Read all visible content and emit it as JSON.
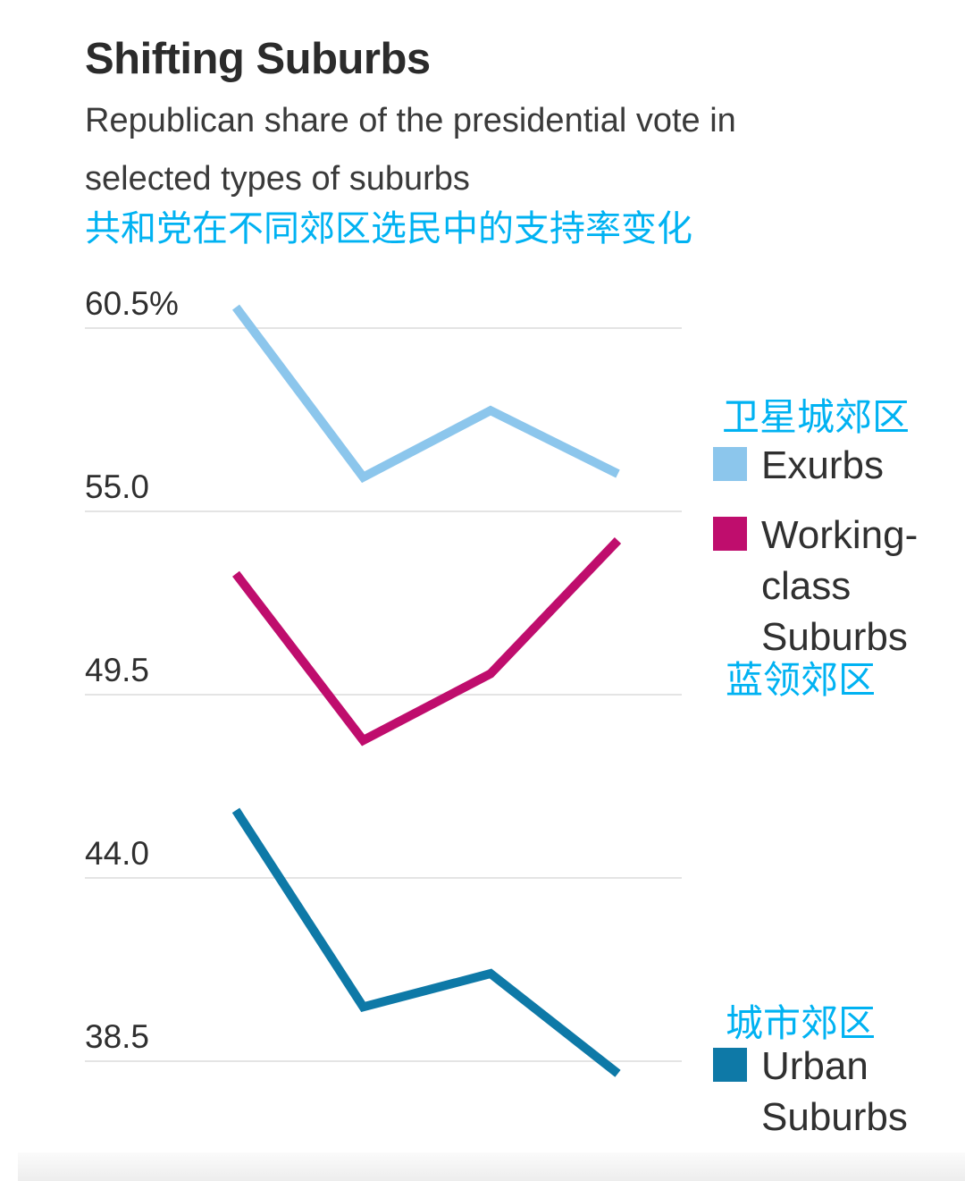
{
  "header": {
    "title": "Shifting Suburbs",
    "subtitle_line1": "Republican share of the presidential vote in",
    "subtitle_line2": "selected types of suburbs",
    "subtitle_zh": "共和党在不同郊区选民中的支持率变化"
  },
  "legend": {
    "exurbs_zh": "卫星城郊区",
    "exurbs_label": "Exurbs",
    "working_class_label": "Working-class Suburbs",
    "working_class_zh": "蓝领郊区",
    "urban_zh": "城市郊区",
    "urban_label": "Urban Suburbs"
  },
  "colors": {
    "exurbs": "#8cc6ec",
    "working_class": "#bf0d6d",
    "urban": "#0e79a7",
    "zh_accent": "#00b2f2",
    "grid": "#e4e4e4",
    "title_text": "#2b2b2b",
    "tick_text": "#2f2f2f"
  },
  "chart_data": {
    "type": "line",
    "title": "Shifting Suburbs",
    "subtitle": "Republican share of the presidential vote in selected types of suburbs",
    "subtitle_zh": "共和党在不同郊区选民中的支持率变化",
    "unit": "%",
    "x": [
      1,
      2,
      3,
      4
    ],
    "x_tick_labels_visible": false,
    "series": [
      {
        "name": "Exurbs",
        "name_zh": "卫星城郊区",
        "color_key": "exurbs",
        "values": [
          61.1,
          56.0,
          58.0,
          56.1
        ]
      },
      {
        "name": "Working-class Suburbs",
        "name_zh": "蓝领郊区",
        "color_key": "working_class",
        "values": [
          53.1,
          48.1,
          50.1,
          54.1
        ]
      },
      {
        "name": "Urban Suburbs",
        "name_zh": "城市郊区",
        "color_key": "urban",
        "values": [
          46.0,
          40.1,
          41.1,
          38.1
        ]
      }
    ],
    "y_ticks": [
      {
        "value": 60.5,
        "label": "60.5%"
      },
      {
        "value": 55.0,
        "label": "55.0"
      },
      {
        "value": 49.5,
        "label": "49.5"
      },
      {
        "value": 44.0,
        "label": "44.0"
      },
      {
        "value": 38.5,
        "label": "38.5"
      }
    ],
    "ylim": [
      36.8,
      62.0
    ],
    "grid": "horizontal",
    "legend_position": "right"
  }
}
